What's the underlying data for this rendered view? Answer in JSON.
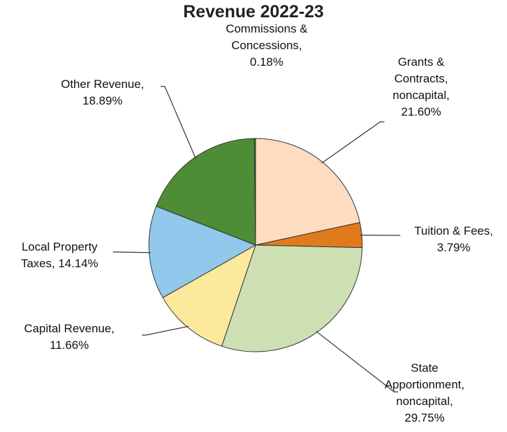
{
  "chart_data": {
    "type": "pie",
    "title": "Revenue 2022-23",
    "categories": [
      "Grants & Contracts, noncapital,",
      "Tuition & Fees,",
      "State Apportionment, noncapital,",
      "Capital Revenue,",
      "Local Property Taxes,",
      "Other Revenue,",
      "Commissions & Concessions,"
    ],
    "values": [
      21.6,
      3.79,
      29.75,
      11.66,
      14.14,
      18.89,
      0.18
    ],
    "value_labels": [
      "21.60%",
      "3.79%",
      "29.75%",
      "11.66%",
      "14.14%",
      "18.89%",
      "0.18%"
    ],
    "colors": [
      "#fddcc2",
      "#e07b1c",
      "#cde0b4",
      "#fde99c",
      "#92c8ec",
      "#4f8c36",
      "#3f7a2c"
    ]
  }
}
